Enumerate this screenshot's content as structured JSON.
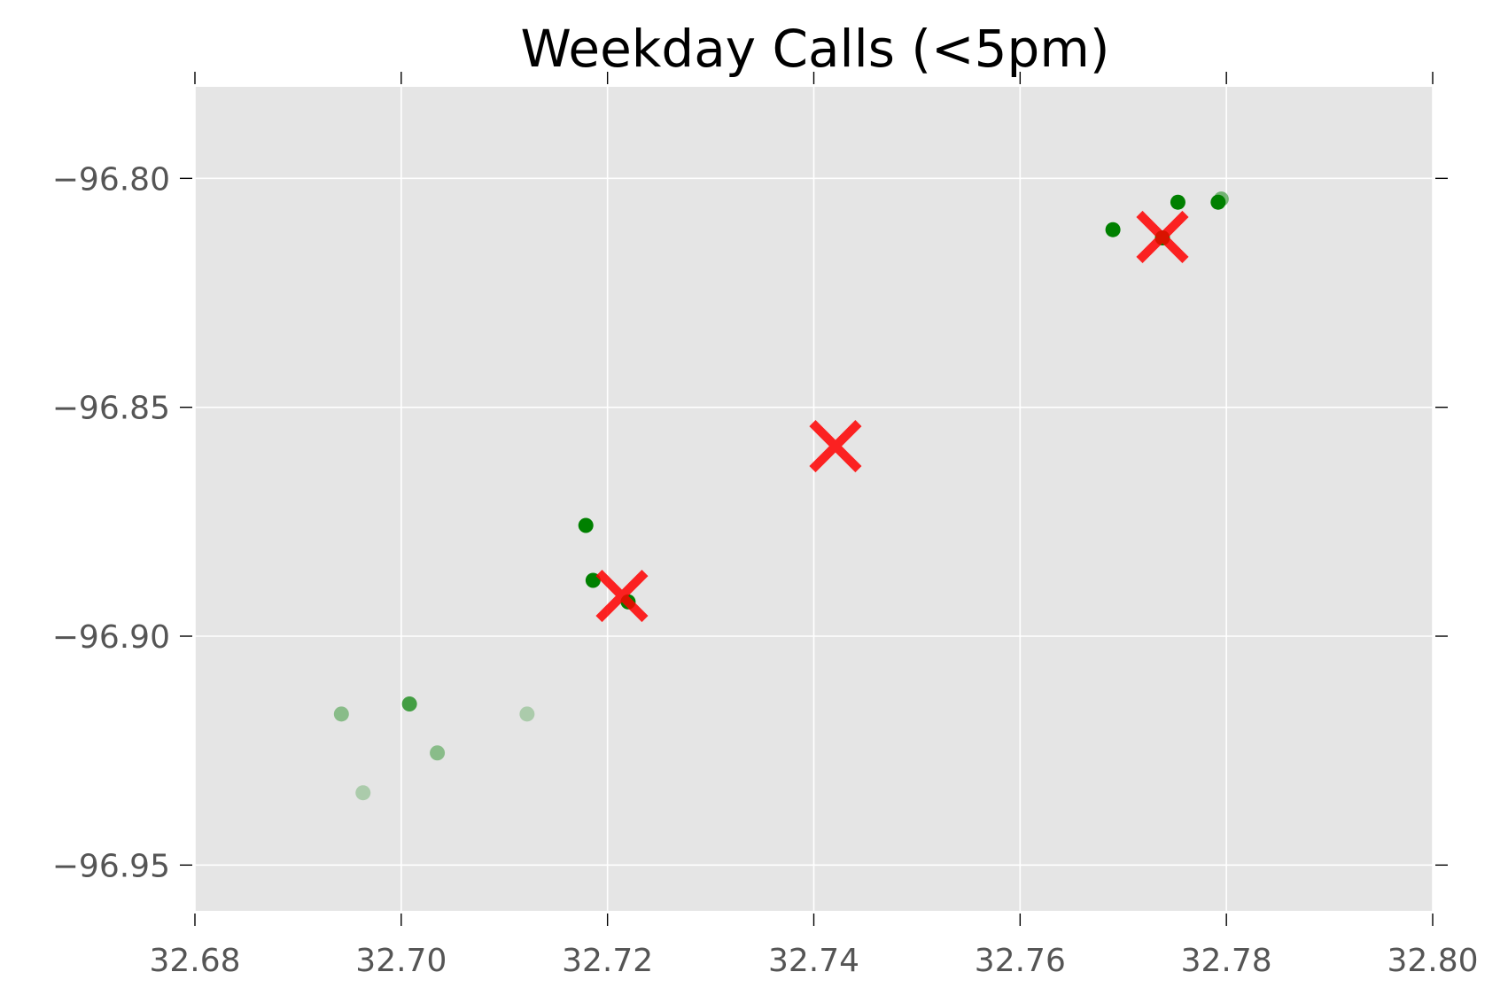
{
  "chart_data": {
    "type": "scatter",
    "title": "Weekday Calls (<5pm)",
    "xlabel": "",
    "ylabel": "",
    "xlim": [
      32.68,
      32.8
    ],
    "ylim": [
      -96.96,
      -96.78
    ],
    "x_ticks": [
      32.68,
      32.7,
      32.72,
      32.74,
      32.76,
      32.78,
      32.8
    ],
    "x_tick_labels": [
      "32.68",
      "32.70",
      "32.72",
      "32.74",
      "32.76",
      "32.78",
      "32.80"
    ],
    "y_ticks": [
      -96.8,
      -96.85,
      -96.9,
      -96.95
    ],
    "y_tick_labels": [
      "−96.80",
      "−96.85",
      "−96.90",
      "−96.95"
    ],
    "grid": true,
    "background_color": "#e5e5e5",
    "series": [
      {
        "marker": "circle",
        "color": "#008000",
        "points": [
          {
            "x": 32.7795,
            "y": -96.8045,
            "alpha": 0.5
          },
          {
            "x": 32.7792,
            "y": -96.8052,
            "alpha": 1.0
          },
          {
            "x": 32.7753,
            "y": -96.8052,
            "alpha": 1.0
          },
          {
            "x": 32.769,
            "y": -96.8112,
            "alpha": 1.0
          },
          {
            "x": 32.7738,
            "y": -96.813,
            "alpha": 1.0
          },
          {
            "x": 32.7179,
            "y": -96.8758,
            "alpha": 1.0
          },
          {
            "x": 32.7186,
            "y": -96.8878,
            "alpha": 1.0
          },
          {
            "x": 32.722,
            "y": -96.8925,
            "alpha": 1.0
          },
          {
            "x": 32.7008,
            "y": -96.9148,
            "alpha": 0.7
          },
          {
            "x": 32.6942,
            "y": -96.917,
            "alpha": 0.4
          },
          {
            "x": 32.7122,
            "y": -96.917,
            "alpha": 0.25
          },
          {
            "x": 32.7035,
            "y": -96.9255,
            "alpha": 0.4
          },
          {
            "x": 32.6963,
            "y": -96.9342,
            "alpha": 0.25
          }
        ]
      },
      {
        "marker": "x",
        "color": "#ff0000",
        "points": [
          {
            "x": 32.7738,
            "y": -96.8128
          },
          {
            "x": 32.7421,
            "y": -96.8585
          },
          {
            "x": 32.7214,
            "y": -96.8912
          }
        ]
      }
    ]
  }
}
